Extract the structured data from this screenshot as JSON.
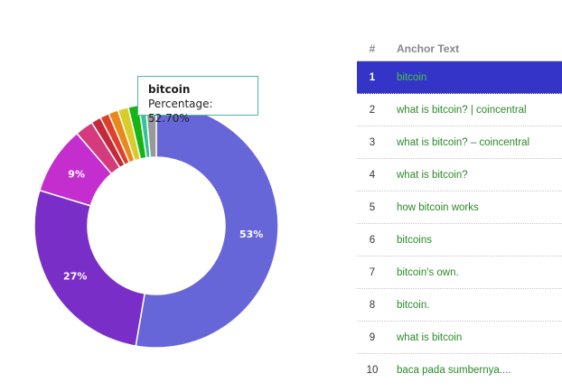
{
  "chart_data": {
    "type": "pie",
    "variant": "donut",
    "slices": [
      {
        "name": "bitcoin",
        "value": 52.7,
        "label": "53%",
        "color": "#6666d9"
      },
      {
        "name": "what is bitcoin? | coincentral",
        "value": 27.0,
        "label": "27%",
        "color": "#7a2ec8"
      },
      {
        "name": "what is bitcoin? – coincentral",
        "value": 9.0,
        "label": "9%",
        "color": "#c42ecf"
      },
      {
        "name": "what is bitcoin?",
        "value": 2.4,
        "label": "",
        "color": "#d43a7c"
      },
      {
        "name": "how bitcoin works",
        "value": 1.3,
        "label": "",
        "color": "#c4283a"
      },
      {
        "name": "bitcoins",
        "value": 1.2,
        "label": "",
        "color": "#e0402a"
      },
      {
        "name": "bitcoin's own.",
        "value": 1.3,
        "label": "",
        "color": "#e8891a"
      },
      {
        "name": "bitcoin.",
        "value": 1.4,
        "label": "",
        "color": "#d9cc2a"
      },
      {
        "name": "what is bitcoin",
        "value": 1.4,
        "label": "",
        "color": "#15b515"
      },
      {
        "name": "baca pada sumbernya....",
        "value": 0.9,
        "label": "",
        "color": "#36c29a"
      },
      {
        "name": "",
        "value": 1.4,
        "label": "",
        "color": "#999999"
      }
    ]
  },
  "tooltip": {
    "title": "bitcoin",
    "value": "Percentage: 52.70%",
    "border_color": "#4fb5a5"
  },
  "table": {
    "header_num": "#",
    "header_text": "Anchor Text",
    "rows": [
      {
        "num": "1",
        "text": "bitcoin",
        "selected": true
      },
      {
        "num": "2",
        "text": "what is bitcoin? | coincentral"
      },
      {
        "num": "3",
        "text": "what is bitcoin? – coincentral"
      },
      {
        "num": "4",
        "text": "what is bitcoin?"
      },
      {
        "num": "5",
        "text": "how bitcoin works"
      },
      {
        "num": "6",
        "text": "bitcoins"
      },
      {
        "num": "7",
        "text": "bitcoin's own."
      },
      {
        "num": "8",
        "text": "bitcoin."
      },
      {
        "num": "9",
        "text": "what is bitcoin"
      },
      {
        "num": "10",
        "text": "baca pada sumbernya...."
      }
    ]
  },
  "colors": {
    "selected_row_bg": "#3434c8",
    "link_text": "#2a8a2a",
    "selected_link_text": "#3ecb3e"
  }
}
